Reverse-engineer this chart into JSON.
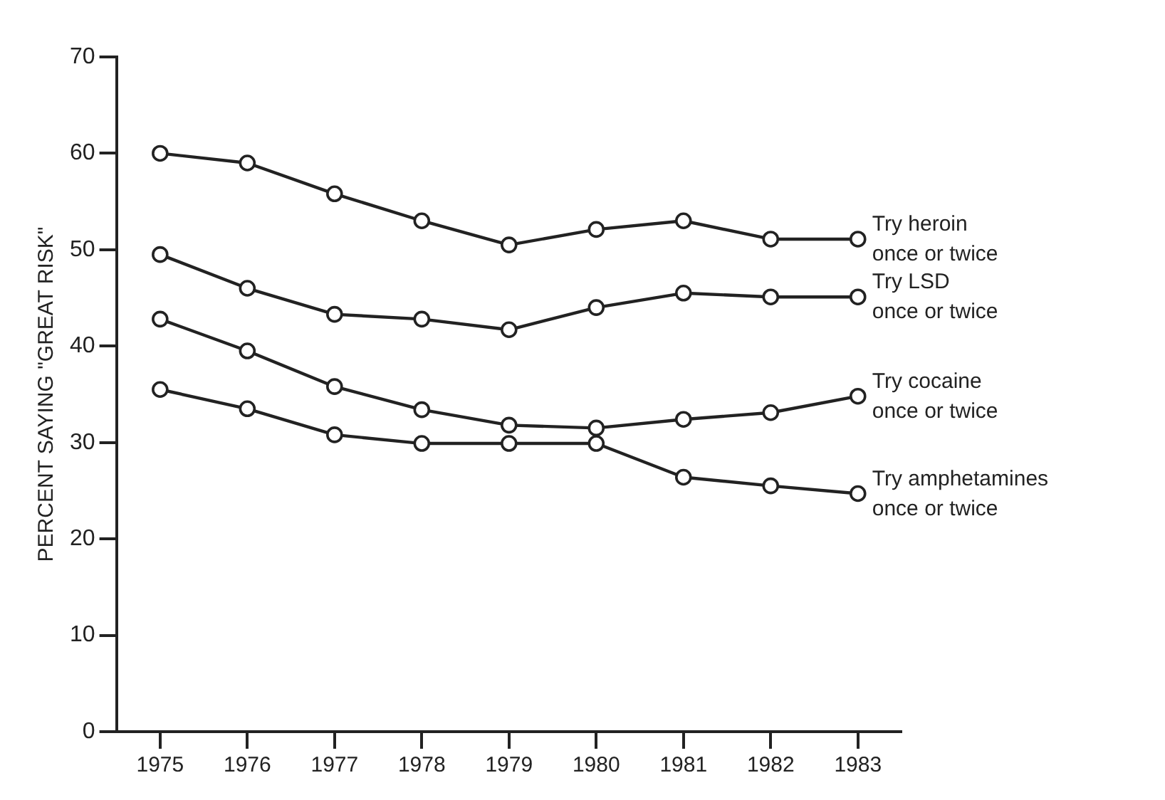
{
  "chart_data": {
    "type": "line",
    "ylabel": "PERCENT SAYING \"GREAT RISK\"",
    "categories": [
      "1975",
      "1976",
      "1977",
      "1978",
      "1979",
      "1980",
      "1981",
      "1982",
      "1983"
    ],
    "ylim": [
      0,
      70
    ],
    "yticks": [
      0,
      10,
      20,
      30,
      40,
      50,
      60,
      70
    ],
    "grid": false,
    "legend": false,
    "marker": "circle",
    "line_style": "solid",
    "series": [
      {
        "name": "Try heroin\nonce or twice",
        "color": "#222222",
        "values": [
          60,
          59,
          55.8,
          53,
          50.5,
          52.1,
          53,
          51.1,
          51.1
        ]
      },
      {
        "name": "Try LSD\nonce or twice",
        "color": "#222222",
        "values": [
          49.5,
          46,
          43.3,
          42.8,
          41.7,
          44,
          45.5,
          45.1,
          45.1
        ]
      },
      {
        "name": "Try cocaine\nonce or twice",
        "color": "#222222",
        "values": [
          42.8,
          39.5,
          35.8,
          33.4,
          31.8,
          31.5,
          32.4,
          33.1,
          34.8
        ]
      },
      {
        "name": "Try amphetamines\nonce or twice",
        "color": "#222222",
        "values": [
          35.5,
          33.5,
          30.8,
          29.9,
          29.9,
          29.9,
          26.4,
          25.5,
          24.7
        ]
      }
    ]
  }
}
